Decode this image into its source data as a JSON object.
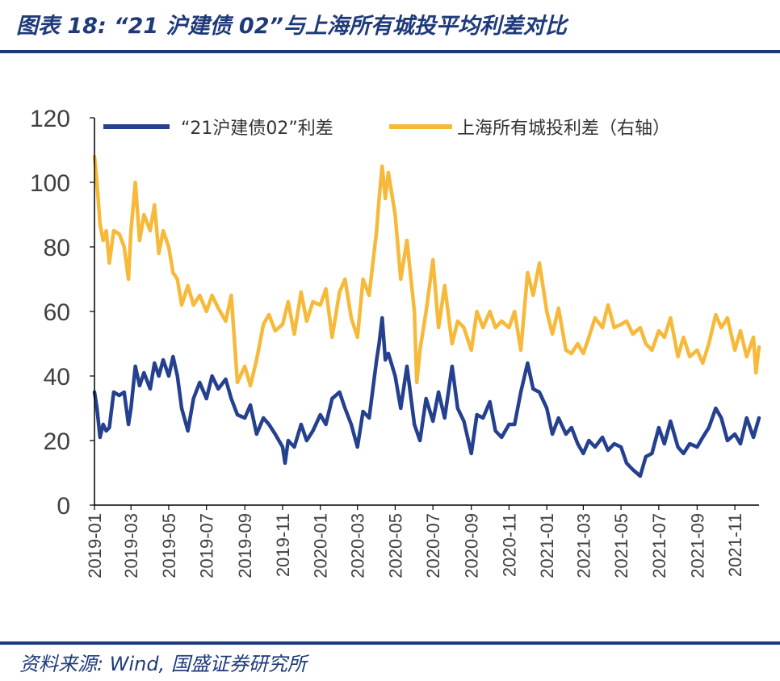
{
  "figure": {
    "title": "图表 18:  “21 沪建债 02”与上海所有城投平均利差对比",
    "source": "资料来源: Wind, 国盛证券研究所"
  },
  "colors": {
    "series_a": "#24408e",
    "series_b": "#f7b93a",
    "rule": "#1f3a7a"
  },
  "chart_data": {
    "type": "line",
    "ylim": [
      0,
      120
    ],
    "yticks": [
      "0",
      "20",
      "40",
      "60",
      "80",
      "100",
      "120"
    ],
    "x_range": [
      "2019-01",
      "2021-12"
    ],
    "xticks": [
      "2019-01",
      "2019-03",
      "2019-05",
      "2019-07",
      "2019-09",
      "2019-11",
      "2020-01",
      "2020-03",
      "2020-05",
      "2020-07",
      "2020-09",
      "2020-11",
      "2021-01",
      "2021-03",
      "2021-05",
      "2021-07",
      "2021-09",
      "2021-11"
    ],
    "legend_position": "top",
    "grid": false,
    "series": [
      {
        "name": "“21沪建债02”利差",
        "points": [
          [
            "2019-01-01",
            35
          ],
          [
            "2019-01-05",
            30
          ],
          [
            "2019-01-10",
            21
          ],
          [
            "2019-01-15",
            25
          ],
          [
            "2019-01-20",
            23
          ],
          [
            "2019-01-25",
            24
          ],
          [
            "2019-02-01",
            35
          ],
          [
            "2019-02-10",
            34
          ],
          [
            "2019-02-18",
            35
          ],
          [
            "2019-02-25",
            25
          ],
          [
            "2019-03-01",
            30
          ],
          [
            "2019-03-08",
            43
          ],
          [
            "2019-03-15",
            37
          ],
          [
            "2019-03-22",
            41
          ],
          [
            "2019-04-01",
            36
          ],
          [
            "2019-04-08",
            44
          ],
          [
            "2019-04-15",
            40
          ],
          [
            "2019-04-22",
            45
          ],
          [
            "2019-05-01",
            40
          ],
          [
            "2019-05-08",
            46
          ],
          [
            "2019-05-15",
            40
          ],
          [
            "2019-05-22",
            30
          ],
          [
            "2019-06-01",
            23
          ],
          [
            "2019-06-10",
            33
          ],
          [
            "2019-06-20",
            38
          ],
          [
            "2019-07-01",
            33
          ],
          [
            "2019-07-10",
            40
          ],
          [
            "2019-07-20",
            36
          ],
          [
            "2019-08-01",
            39
          ],
          [
            "2019-08-10",
            33
          ],
          [
            "2019-08-20",
            28
          ],
          [
            "2019-09-01",
            27
          ],
          [
            "2019-09-10",
            31
          ],
          [
            "2019-09-20",
            22
          ],
          [
            "2019-10-01",
            27
          ],
          [
            "2019-10-10",
            25
          ],
          [
            "2019-10-20",
            22
          ],
          [
            "2019-11-01",
            18
          ],
          [
            "2019-11-05",
            13
          ],
          [
            "2019-11-10",
            20
          ],
          [
            "2019-11-20",
            18
          ],
          [
            "2019-12-01",
            25
          ],
          [
            "2019-12-10",
            20
          ],
          [
            "2019-12-20",
            23
          ],
          [
            "2020-01-01",
            28
          ],
          [
            "2020-01-10",
            25
          ],
          [
            "2020-01-20",
            33
          ],
          [
            "2020-02-01",
            35
          ],
          [
            "2020-02-10",
            30
          ],
          [
            "2020-02-20",
            25
          ],
          [
            "2020-03-01",
            18
          ],
          [
            "2020-03-10",
            29
          ],
          [
            "2020-03-20",
            27
          ],
          [
            "2020-04-01",
            45
          ],
          [
            "2020-04-05",
            50
          ],
          [
            "2020-04-10",
            58
          ],
          [
            "2020-04-15",
            45
          ],
          [
            "2020-04-20",
            47
          ],
          [
            "2020-05-01",
            40
          ],
          [
            "2020-05-10",
            30
          ],
          [
            "2020-05-20",
            43
          ],
          [
            "2020-06-01",
            25
          ],
          [
            "2020-06-10",
            20
          ],
          [
            "2020-06-20",
            33
          ],
          [
            "2020-07-01",
            26
          ],
          [
            "2020-07-10",
            35
          ],
          [
            "2020-07-20",
            27
          ],
          [
            "2020-08-01",
            43
          ],
          [
            "2020-08-10",
            30
          ],
          [
            "2020-08-20",
            26
          ],
          [
            "2020-09-01",
            16
          ],
          [
            "2020-09-10",
            28
          ],
          [
            "2020-09-20",
            27
          ],
          [
            "2020-10-01",
            32
          ],
          [
            "2020-10-10",
            23
          ],
          [
            "2020-10-20",
            21
          ],
          [
            "2020-11-01",
            25
          ],
          [
            "2020-11-10",
            25
          ],
          [
            "2020-11-20",
            35
          ],
          [
            "2020-12-01",
            44
          ],
          [
            "2020-12-10",
            36
          ],
          [
            "2020-12-20",
            35
          ],
          [
            "2021-01-01",
            30
          ],
          [
            "2021-01-10",
            22
          ],
          [
            "2021-01-20",
            27
          ],
          [
            "2021-02-01",
            22
          ],
          [
            "2021-02-10",
            24
          ],
          [
            "2021-02-20",
            19
          ],
          [
            "2021-03-01",
            16
          ],
          [
            "2021-03-10",
            20
          ],
          [
            "2021-03-20",
            18
          ],
          [
            "2021-04-01",
            21
          ],
          [
            "2021-04-10",
            17
          ],
          [
            "2021-04-20",
            19
          ],
          [
            "2021-05-01",
            18
          ],
          [
            "2021-05-10",
            13
          ],
          [
            "2021-05-20",
            11
          ],
          [
            "2021-06-01",
            9
          ],
          [
            "2021-06-10",
            15
          ],
          [
            "2021-06-20",
            16
          ],
          [
            "2021-07-01",
            24
          ],
          [
            "2021-07-10",
            19
          ],
          [
            "2021-07-20",
            26
          ],
          [
            "2021-08-01",
            18
          ],
          [
            "2021-08-10",
            16
          ],
          [
            "2021-08-20",
            19
          ],
          [
            "2021-09-01",
            18
          ],
          [
            "2021-09-10",
            21
          ],
          [
            "2021-09-20",
            24
          ],
          [
            "2021-10-01",
            30
          ],
          [
            "2021-10-10",
            27
          ],
          [
            "2021-10-20",
            20
          ],
          [
            "2021-11-01",
            22
          ],
          [
            "2021-11-10",
            19
          ],
          [
            "2021-11-20",
            27
          ],
          [
            "2021-12-01",
            21
          ],
          [
            "2021-12-10",
            27
          ]
        ]
      },
      {
        "name": "上海所有城投利差（右轴）",
        "points": [
          [
            "2019-01-01",
            108
          ],
          [
            "2019-01-05",
            100
          ],
          [
            "2019-01-10",
            87
          ],
          [
            "2019-01-15",
            82
          ],
          [
            "2019-01-20",
            85
          ],
          [
            "2019-01-25",
            75
          ],
          [
            "2019-02-01",
            85
          ],
          [
            "2019-02-10",
            84
          ],
          [
            "2019-02-18",
            80
          ],
          [
            "2019-02-25",
            70
          ],
          [
            "2019-03-01",
            85
          ],
          [
            "2019-03-08",
            100
          ],
          [
            "2019-03-15",
            82
          ],
          [
            "2019-03-22",
            90
          ],
          [
            "2019-04-01",
            85
          ],
          [
            "2019-04-08",
            93
          ],
          [
            "2019-04-15",
            78
          ],
          [
            "2019-04-22",
            85
          ],
          [
            "2019-05-01",
            80
          ],
          [
            "2019-05-08",
            72
          ],
          [
            "2019-05-15",
            70
          ],
          [
            "2019-05-22",
            62
          ],
          [
            "2019-06-01",
            68
          ],
          [
            "2019-06-10",
            62
          ],
          [
            "2019-06-20",
            65
          ],
          [
            "2019-07-01",
            60
          ],
          [
            "2019-07-10",
            65
          ],
          [
            "2019-07-20",
            61
          ],
          [
            "2019-08-01",
            57
          ],
          [
            "2019-08-10",
            65
          ],
          [
            "2019-08-20",
            38
          ],
          [
            "2019-09-01",
            43
          ],
          [
            "2019-09-10",
            37
          ],
          [
            "2019-09-20",
            45
          ],
          [
            "2019-10-01",
            56
          ],
          [
            "2019-10-10",
            59
          ],
          [
            "2019-10-20",
            54
          ],
          [
            "2019-11-01",
            56
          ],
          [
            "2019-11-10",
            63
          ],
          [
            "2019-11-20",
            53
          ],
          [
            "2019-12-01",
            66
          ],
          [
            "2019-12-10",
            57
          ],
          [
            "2019-12-20",
            63
          ],
          [
            "2020-01-01",
            62
          ],
          [
            "2020-01-10",
            67
          ],
          [
            "2020-01-20",
            52
          ],
          [
            "2020-02-01",
            66
          ],
          [
            "2020-02-10",
            70
          ],
          [
            "2020-02-20",
            58
          ],
          [
            "2020-03-01",
            52
          ],
          [
            "2020-03-10",
            70
          ],
          [
            "2020-03-20",
            65
          ],
          [
            "2020-04-01",
            85
          ],
          [
            "2020-04-05",
            95
          ],
          [
            "2020-04-10",
            105
          ],
          [
            "2020-04-15",
            95
          ],
          [
            "2020-04-20",
            103
          ],
          [
            "2020-05-01",
            90
          ],
          [
            "2020-05-10",
            70
          ],
          [
            "2020-05-20",
            82
          ],
          [
            "2020-06-01",
            60
          ],
          [
            "2020-06-05",
            38
          ],
          [
            "2020-06-10",
            48
          ],
          [
            "2020-06-20",
            60
          ],
          [
            "2020-07-01",
            76
          ],
          [
            "2020-07-10",
            55
          ],
          [
            "2020-07-20",
            68
          ],
          [
            "2020-08-01",
            50
          ],
          [
            "2020-08-10",
            57
          ],
          [
            "2020-08-20",
            55
          ],
          [
            "2020-09-01",
            48
          ],
          [
            "2020-09-10",
            60
          ],
          [
            "2020-09-20",
            55
          ],
          [
            "2020-10-01",
            60
          ],
          [
            "2020-10-10",
            55
          ],
          [
            "2020-10-20",
            57
          ],
          [
            "2020-11-01",
            55
          ],
          [
            "2020-11-10",
            60
          ],
          [
            "2020-11-20",
            48
          ],
          [
            "2020-12-01",
            72
          ],
          [
            "2020-12-10",
            65
          ],
          [
            "2020-12-20",
            75
          ],
          [
            "2021-01-01",
            60
          ],
          [
            "2021-01-10",
            53
          ],
          [
            "2021-01-20",
            61
          ],
          [
            "2021-02-01",
            48
          ],
          [
            "2021-02-10",
            47
          ],
          [
            "2021-02-20",
            50
          ],
          [
            "2021-03-01",
            47
          ],
          [
            "2021-03-10",
            52
          ],
          [
            "2021-03-20",
            58
          ],
          [
            "2021-04-01",
            55
          ],
          [
            "2021-04-10",
            62
          ],
          [
            "2021-04-20",
            55
          ],
          [
            "2021-05-01",
            56
          ],
          [
            "2021-05-10",
            57
          ],
          [
            "2021-05-20",
            53
          ],
          [
            "2021-06-01",
            55
          ],
          [
            "2021-06-10",
            50
          ],
          [
            "2021-06-20",
            48
          ],
          [
            "2021-07-01",
            54
          ],
          [
            "2021-07-10",
            52
          ],
          [
            "2021-07-20",
            58
          ],
          [
            "2021-08-01",
            46
          ],
          [
            "2021-08-10",
            52
          ],
          [
            "2021-08-20",
            46
          ],
          [
            "2021-09-01",
            48
          ],
          [
            "2021-09-10",
            44
          ],
          [
            "2021-09-20",
            50
          ],
          [
            "2021-10-01",
            59
          ],
          [
            "2021-10-10",
            55
          ],
          [
            "2021-10-20",
            58
          ],
          [
            "2021-11-01",
            48
          ],
          [
            "2021-11-10",
            54
          ],
          [
            "2021-11-20",
            46
          ],
          [
            "2021-12-01",
            52
          ],
          [
            "2021-12-05",
            41
          ],
          [
            "2021-12-10",
            49
          ]
        ]
      }
    ]
  }
}
